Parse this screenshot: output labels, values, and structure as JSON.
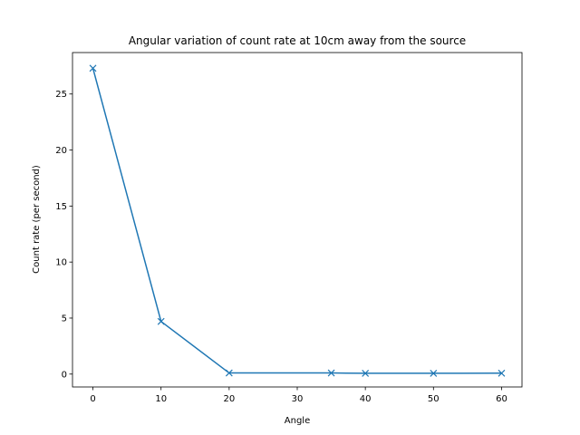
{
  "chart_data": {
    "type": "line",
    "title": "Angular variation of count rate at 10cm away from the source",
    "xlabel": "Angle",
    "ylabel": "Count rate (per second)",
    "xlim": [
      -3,
      63
    ],
    "ylim": [
      -1.15,
      28.7
    ],
    "xticks": [
      0,
      10,
      20,
      30,
      40,
      50,
      60
    ],
    "yticks": [
      0,
      5,
      10,
      15,
      20,
      25
    ],
    "grid": false,
    "marker": "x",
    "series": [
      {
        "color": "#1f77b4",
        "x": [
          0,
          10,
          20,
          35,
          40,
          50,
          60
        ],
        "y": [
          27.3,
          4.7,
          0.1,
          0.1,
          0.07,
          0.07,
          0.08
        ]
      }
    ]
  }
}
